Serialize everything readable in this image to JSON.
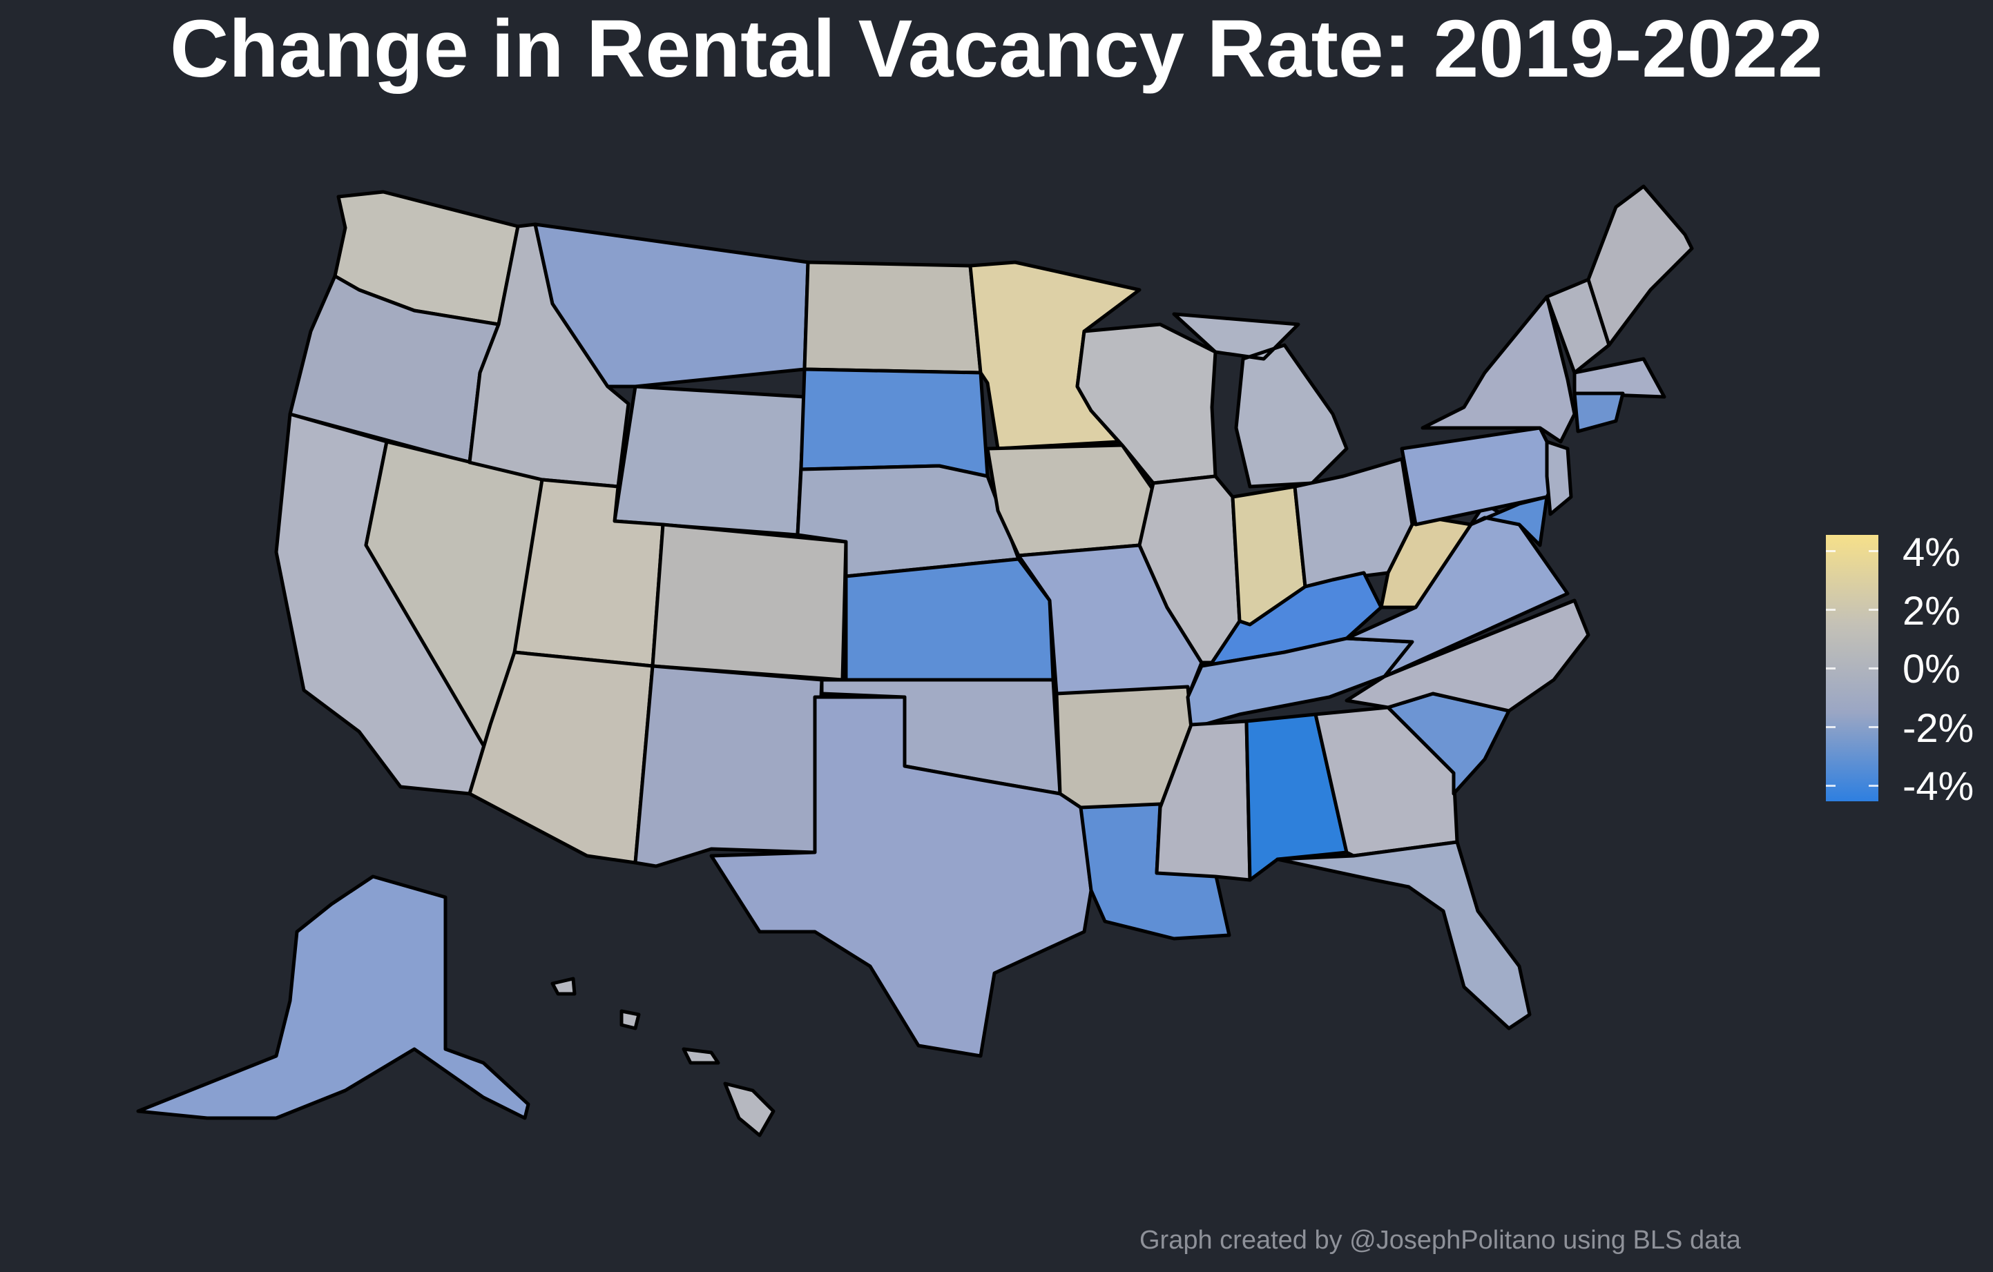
{
  "title": "Change in Rental Vacancy Rate: 2019-2022",
  "legend": {
    "ticks": [
      "4%",
      "2%",
      "0%",
      "-2%",
      "-4%"
    ],
    "gradient": [
      "#f6e08a",
      "#c4c1b6",
      "#9aa6c4",
      "#2e7fe0"
    ]
  },
  "caption": "Graph created by @JosephPolitano using BLS data",
  "colors": {
    "background": "#23272f",
    "tan_pos": "#dccfa6",
    "neutral": "#bdbab3",
    "light_blue": "#9ea8c3",
    "mid_blue": "#8a9dcc",
    "blue": "#5d8fd6",
    "strong_blue": "#2e80db"
  }
}
